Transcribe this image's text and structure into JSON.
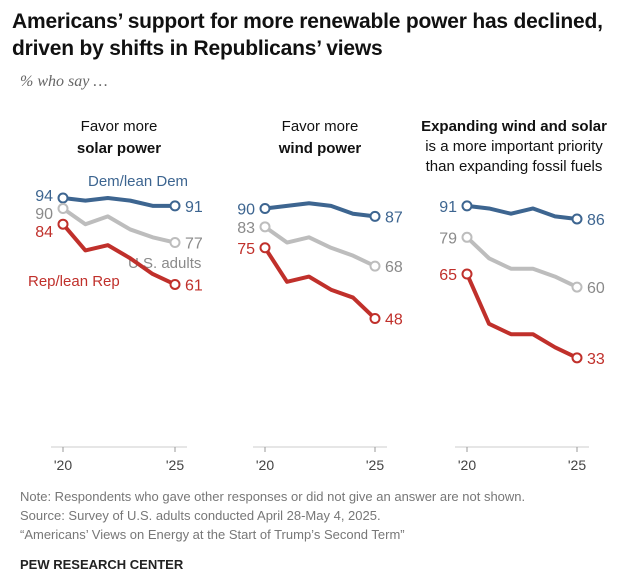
{
  "title": "Americans’ support for more renewable power has declined, driven by shifts in Republicans’ views",
  "subtitle": "% who say …",
  "notes": [
    "Note: Respondents who gave other responses or did not give an answer are not shown.",
    "Source: Survey of U.S. adults conducted April 28-May 4, 2025.",
    "“Americans’ Views on Energy at the Start of Trump’s Second Term”"
  ],
  "brand": "PEW RESEARCH CENTER",
  "colors": {
    "dem": "#3d6590",
    "adults": "#bdbdbd",
    "adults_label": "#8a8a8a",
    "rep": "#c0302b"
  },
  "chart_data": [
    {
      "type": "line",
      "header": [
        {
          "text": "Favor more",
          "bold": false
        },
        {
          "text": "solar power",
          "bold": true
        }
      ],
      "x": [
        2020,
        2021,
        2022,
        2023,
        2024,
        2025
      ],
      "x_tick_labels": [
        "'20",
        "'25"
      ],
      "series": [
        {
          "name": "Dem/lean Dem",
          "key": "dem",
          "values": [
            94,
            93,
            94,
            93,
            91,
            91
          ]
        },
        {
          "name": "U.S. adults",
          "key": "adults",
          "values": [
            90,
            84,
            87,
            82,
            79,
            77
          ]
        },
        {
          "name": "Rep/lean Rep",
          "key": "rep",
          "values": [
            84,
            74,
            76,
            71,
            65,
            61
          ]
        }
      ]
    },
    {
      "type": "line",
      "header": [
        {
          "text": "Favor more",
          "bold": false
        },
        {
          "text": "wind power",
          "bold": true
        }
      ],
      "x": [
        2020,
        2021,
        2022,
        2023,
        2024,
        2025
      ],
      "x_tick_labels": [
        "'20",
        "'25"
      ],
      "series": [
        {
          "key": "dem",
          "values": [
            90,
            91,
            92,
            91,
            88,
            87
          ]
        },
        {
          "key": "adults",
          "values": [
            83,
            77,
            79,
            75,
            72,
            68
          ]
        },
        {
          "key": "rep",
          "values": [
            75,
            62,
            64,
            59,
            56,
            48
          ]
        }
      ]
    },
    {
      "type": "line",
      "header": [
        {
          "text": "Expanding wind and solar",
          "bold": true
        },
        {
          "text": "is a more important priority",
          "bold": false
        },
        {
          "text": "than expanding fossil fuels",
          "bold": false
        }
      ],
      "x": [
        2020,
        2021,
        2022,
        2023,
        2024,
        2025
      ],
      "x_tick_labels": [
        "'20",
        "'25"
      ],
      "series": [
        {
          "key": "dem",
          "values": [
            91,
            90,
            88,
            90,
            87,
            86
          ]
        },
        {
          "key": "adults",
          "values": [
            79,
            71,
            67,
            67,
            64,
            60
          ]
        },
        {
          "key": "rep",
          "values": [
            65,
            46,
            42,
            42,
            37,
            33
          ]
        }
      ]
    }
  ]
}
